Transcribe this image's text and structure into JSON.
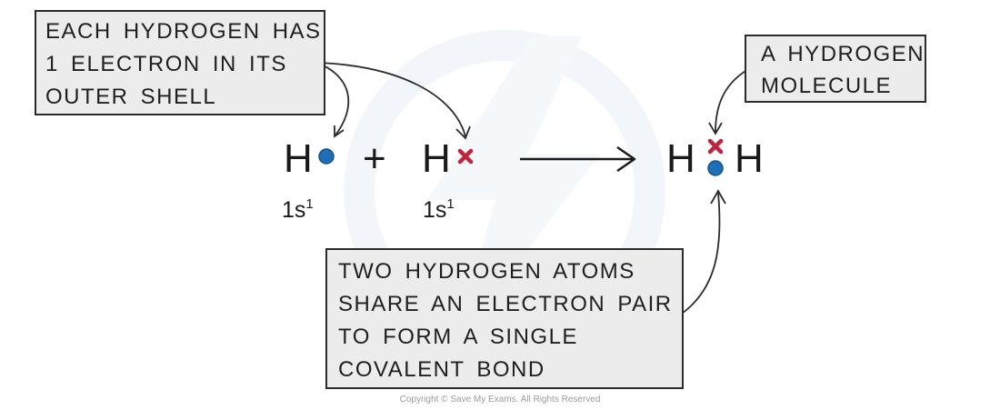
{
  "callouts": {
    "each_hydrogen": [
      "EACH HYDROGEN HAS",
      "1 ELECTRON IN ITS",
      "OUTER SHELL"
    ],
    "molecule": [
      "A HYDROGEN",
      "MOLECULE"
    ],
    "two_hydrogen": [
      "TWO HYDROGEN ATOMS",
      "SHARE AN ELECTRON PAIR",
      "TO FORM A SINGLE",
      "COVALENT  BOND"
    ]
  },
  "equation": {
    "atom_1": "H",
    "plus": "+",
    "atom_2": "H",
    "product_left": "H",
    "product_right": "H"
  },
  "configs": {
    "atom_1": {
      "base": "1s",
      "sup": "1"
    },
    "atom_2": {
      "base": "1s",
      "sup": "1"
    }
  },
  "colors": {
    "electron_dot": "#1e6fb8",
    "electron_cross": "#c0243c",
    "callout_fill": "#ececec",
    "watermark": "#eef3f8"
  },
  "copyright": "Copyright © Save My Exams. All Rights Reserved"
}
